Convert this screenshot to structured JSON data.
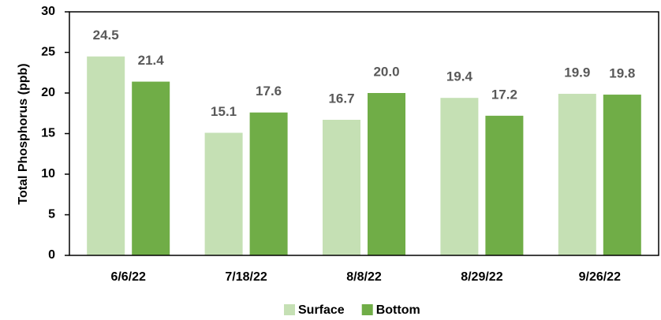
{
  "chart_data": {
    "type": "bar",
    "categories": [
      "6/6/22",
      "7/18/22",
      "8/8/22",
      "8/29/22",
      "9/26/22"
    ],
    "y_label": "Total Phosphorus (ppb)",
    "series": [
      {
        "name": "Surface",
        "color": "#c5e0b4",
        "values": [
          24.5,
          15.1,
          16.7,
          19.4,
          19.9
        ],
        "value_labels": [
          "24.5",
          "15.1",
          "16.7",
          "19.4",
          "19.9"
        ]
      },
      {
        "name": "Bottom",
        "color": "#70ad47",
        "values": [
          21.4,
          17.6,
          20.0,
          17.2,
          19.8
        ],
        "value_labels": [
          "21.4",
          "17.6",
          "20.0",
          "17.2",
          "19.8"
        ]
      }
    ],
    "ylim": [
      0,
      30
    ],
    "yticks": [
      0,
      5,
      10,
      15,
      20,
      25,
      30
    ],
    "grid": false,
    "legend": "bottom"
  }
}
